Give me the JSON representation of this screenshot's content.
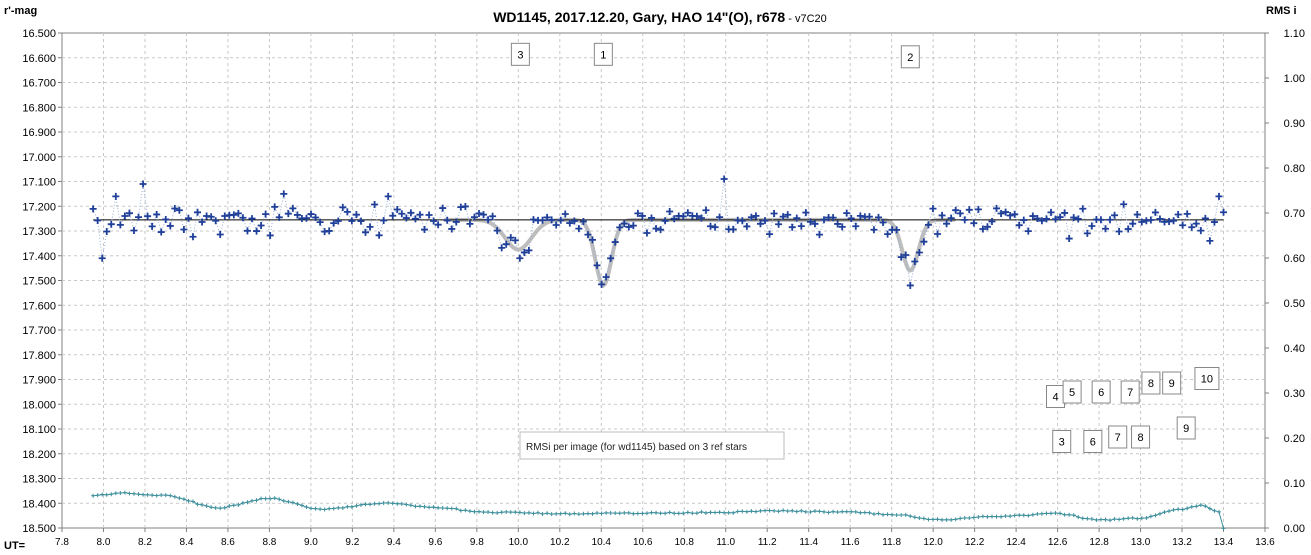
{
  "chart_data": {
    "type": "scatter",
    "title": "WD1145, 2017.12.20,  Gary, HAO 14\"(O), r678",
    "title_suffix": " - v7C20",
    "ylabel_left": "r'-mag",
    "ylabel_right": "RMS i",
    "xlabel": "UT=",
    "xlim": [
      7.8,
      13.6
    ],
    "x_ticks": [
      "7.8",
      "8.0",
      "8.2",
      "8.4",
      "8.6",
      "8.8",
      "9.0",
      "9.2",
      "9.4",
      "9.6",
      "9.8",
      "10.0",
      "10.2",
      "10.4",
      "10.6",
      "10.8",
      "11.0",
      "11.2",
      "11.4",
      "11.6",
      "11.8",
      "12.0",
      "12.2",
      "12.4",
      "12.6",
      "12.8",
      "13.0",
      "13.2",
      "13.4",
      "13.6"
    ],
    "ylim_left": [
      16.5,
      18.5
    ],
    "y_ticks_left": [
      "16.500",
      "16.600",
      "16.700",
      "16.800",
      "16.900",
      "17.000",
      "17.100",
      "17.200",
      "17.300",
      "17.400",
      "17.500",
      "17.600",
      "17.700",
      "17.800",
      "17.900",
      "18.000",
      "18.100",
      "18.200",
      "18.300",
      "18.400",
      "18.500"
    ],
    "ylim_right": [
      0.0,
      1.1
    ],
    "y_ticks_right": [
      "1.10",
      "1.00",
      "0.90",
      "0.80",
      "0.70",
      "0.60",
      "0.50",
      "0.40",
      "0.30",
      "0.20",
      "0.10",
      "0.00"
    ],
    "grid": true,
    "reference_line_mag": 17.255,
    "dip_model": {
      "baseline": 17.255,
      "dips": [
        {
          "center": 10.0,
          "depth": 0.12,
          "width": 0.09
        },
        {
          "center": 10.41,
          "depth": 0.265,
          "width": 0.055
        },
        {
          "center": 11.89,
          "depth": 0.205,
          "width": 0.055
        }
      ]
    },
    "observations": {
      "name": "WD1145",
      "x_start": 7.95,
      "x_end": 13.4,
      "count": 250,
      "noise_amplitude": 0.035,
      "outliers": [
        [
          8.0,
          17.41
        ],
        [
          8.05,
          17.16
        ],
        [
          8.18,
          17.11
        ],
        [
          8.87,
          17.15
        ],
        [
          9.38,
          17.16
        ],
        [
          10.0,
          17.41
        ],
        [
          11.0,
          17.09
        ],
        [
          11.89,
          17.52
        ],
        [
          13.33,
          17.34
        ],
        [
          13.38,
          17.16
        ]
      ]
    },
    "rms_series": {
      "name": "RMSi per image (for wd1145) based on 3 ref stars",
      "x_start": 7.95,
      "x_end": 13.4,
      "count": 250,
      "profile": [
        [
          7.95,
          0.072
        ],
        [
          8.1,
          0.078
        ],
        [
          8.3,
          0.072
        ],
        [
          8.55,
          0.045
        ],
        [
          8.8,
          0.066
        ],
        [
          9.05,
          0.042
        ],
        [
          9.35,
          0.055
        ],
        [
          9.6,
          0.045
        ],
        [
          9.85,
          0.035
        ],
        [
          10.2,
          0.032
        ],
        [
          10.6,
          0.033
        ],
        [
          11.0,
          0.035
        ],
        [
          11.25,
          0.038
        ],
        [
          11.6,
          0.035
        ],
        [
          11.85,
          0.028
        ],
        [
          12.0,
          0.018
        ],
        [
          12.3,
          0.025
        ],
        [
          12.6,
          0.032
        ],
        [
          12.8,
          0.018
        ],
        [
          13.0,
          0.022
        ],
        [
          13.2,
          0.042
        ],
        [
          13.3,
          0.05
        ],
        [
          13.38,
          0.035
        ],
        [
          13.4,
          0.0
        ]
      ]
    },
    "legend_text": "RMSi per image (for wd1145) based on 3 ref stars",
    "dip_labels": [
      {
        "text": "3",
        "x": 10.01,
        "y": 16.57
      },
      {
        "text": "1",
        "x": 10.41,
        "y": 16.57
      },
      {
        "text": "2",
        "x": 11.89,
        "y": 16.58
      }
    ],
    "ref_labels": [
      {
        "text": "4",
        "x": 12.59,
        "y": 0.27
      },
      {
        "text": "5",
        "x": 12.67,
        "y": 0.28
      },
      {
        "text": "6",
        "x": 12.81,
        "y": 0.28
      },
      {
        "text": "7",
        "x": 12.95,
        "y": 0.28
      },
      {
        "text": "8",
        "x": 13.05,
        "y": 0.3
      },
      {
        "text": "9",
        "x": 13.15,
        "y": 0.3
      },
      {
        "text": "10",
        "x": 13.32,
        "y": 0.31
      }
    ],
    "ref_labels_lower": [
      {
        "text": "3",
        "x": 12.62,
        "y": 0.17
      },
      {
        "text": "6",
        "x": 12.77,
        "y": 0.17
      },
      {
        "text": "7",
        "x": 12.89,
        "y": 0.18
      },
      {
        "text": "8",
        "x": 13.0,
        "y": 0.18
      },
      {
        "text": "9",
        "x": 13.22,
        "y": 0.2
      }
    ],
    "colors": {
      "observations": "#1f3f99",
      "observations_line": "#9ab0d6",
      "model": "#bdbdbd",
      "reference_line": "#000000",
      "rms": "#3d8f9c",
      "grid": "#c8c8c8"
    }
  }
}
